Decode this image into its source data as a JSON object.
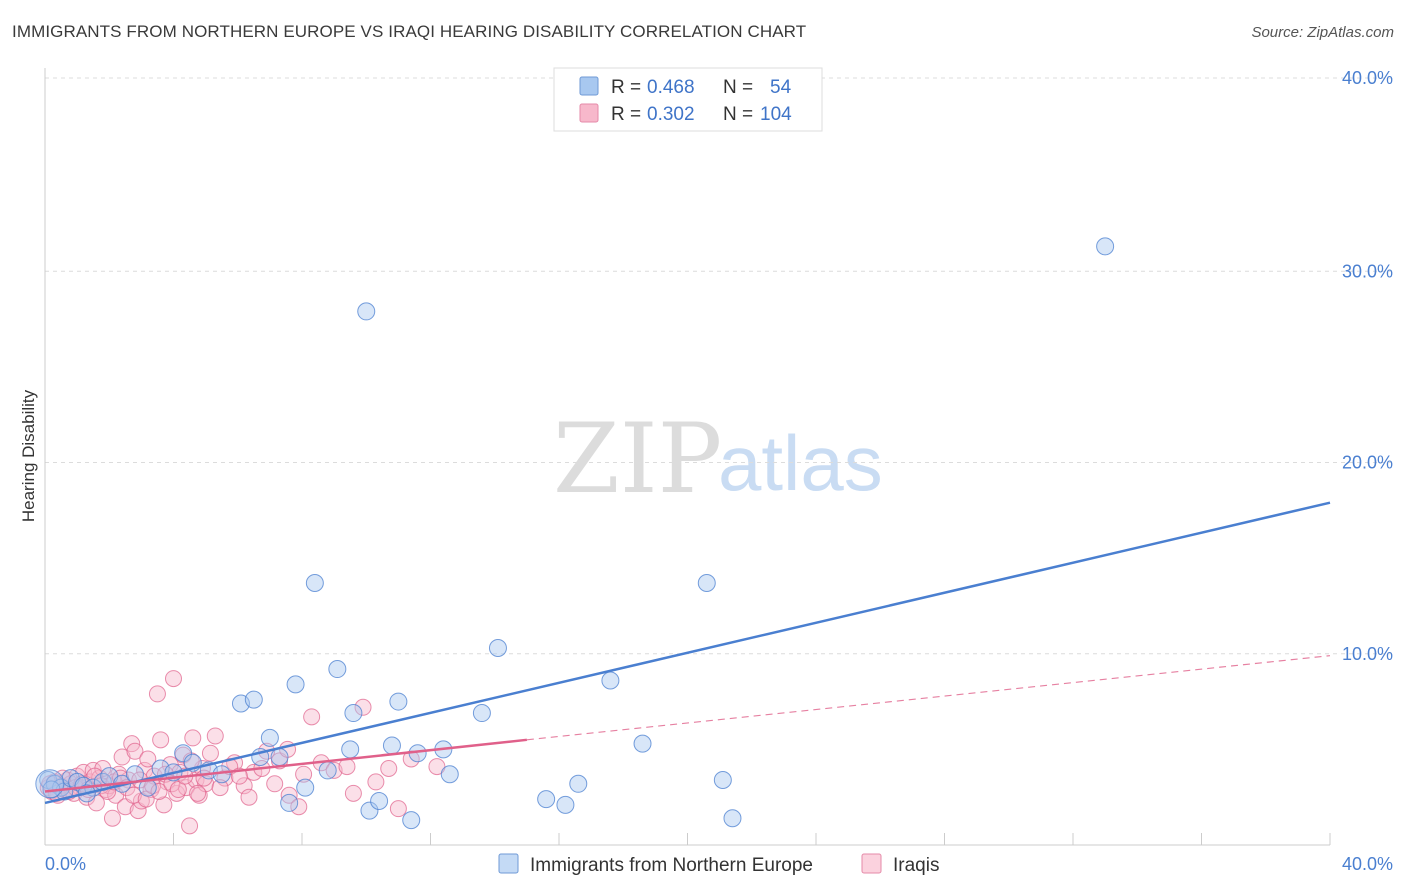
{
  "header": {
    "title": "IMMIGRANTS FROM NORTHERN EUROPE VS IRAQI HEARING DISABILITY CORRELATION CHART",
    "source": "Source: ZipAtlas.com"
  },
  "watermark": {
    "zip": "ZIP",
    "atlas": "atlas"
  },
  "legend": {
    "rows": [
      {
        "r_label": "R =",
        "r_value": "0.468",
        "n_label": "N =",
        "n_value": "54",
        "color": "#a8c8f0"
      },
      {
        "r_label": "R =",
        "r_value": "0.302",
        "n_label": "N =",
        "n_value": "104",
        "color": "#f7b8cb"
      }
    ]
  },
  "chart_data": {
    "type": "scatter",
    "title": "IMMIGRANTS FROM NORTHERN EUROPE VS IRAQI HEARING DISABILITY CORRELATION CHART",
    "xlabel": "",
    "ylabel": "Hearing Disability",
    "xlim": [
      0,
      40
    ],
    "ylim": [
      0,
      40
    ],
    "x_tick_labels": [
      "0.0%",
      "40.0%"
    ],
    "y_ticks": [
      10,
      20,
      30,
      40
    ],
    "y_tick_labels": [
      "10.0%",
      "20.0%",
      "30.0%",
      "40.0%"
    ],
    "grid": true,
    "series": [
      {
        "name": "Immigrants from Northern Europe",
        "color": "#4a7fd0",
        "fill": "#a8c8f0",
        "trend": {
          "x": [
            0,
            40
          ],
          "y": [
            2.2,
            17.9
          ],
          "style": "solid"
        },
        "points": [
          [
            0.1,
            3.4
          ],
          [
            0.3,
            3.2
          ],
          [
            0.5,
            3.0
          ],
          [
            0.6,
            2.8
          ],
          [
            0.8,
            3.5
          ],
          [
            1.0,
            3.3
          ],
          [
            1.2,
            3.1
          ],
          [
            1.5,
            3.0
          ],
          [
            1.8,
            3.3
          ],
          [
            2.0,
            3.6
          ],
          [
            2.4,
            3.2
          ],
          [
            2.8,
            3.7
          ],
          [
            3.2,
            3.0
          ],
          [
            3.6,
            4.0
          ],
          [
            4.0,
            3.8
          ],
          [
            4.3,
            4.8
          ],
          [
            4.6,
            4.3
          ],
          [
            5.1,
            3.9
          ],
          [
            5.5,
            3.7
          ],
          [
            6.1,
            7.4
          ],
          [
            6.5,
            7.6
          ],
          [
            6.7,
            4.6
          ],
          [
            7.0,
            5.6
          ],
          [
            7.3,
            4.6
          ],
          [
            7.6,
            2.2
          ],
          [
            7.8,
            8.4
          ],
          [
            8.1,
            3.0
          ],
          [
            8.4,
            13.7
          ],
          [
            8.8,
            3.9
          ],
          [
            9.1,
            9.2
          ],
          [
            9.5,
            5.0
          ],
          [
            9.6,
            6.9
          ],
          [
            10.0,
            27.9
          ],
          [
            10.1,
            1.8
          ],
          [
            10.4,
            2.3
          ],
          [
            10.8,
            5.2
          ],
          [
            11.0,
            7.5
          ],
          [
            11.4,
            1.3
          ],
          [
            11.6,
            4.8
          ],
          [
            12.4,
            5.0
          ],
          [
            12.6,
            3.7
          ],
          [
            13.6,
            6.9
          ],
          [
            14.1,
            10.3
          ],
          [
            15.6,
            2.4
          ],
          [
            16.2,
            2.1
          ],
          [
            16.6,
            3.2
          ],
          [
            17.6,
            8.6
          ],
          [
            18.6,
            5.3
          ],
          [
            20.6,
            13.7
          ],
          [
            21.1,
            3.4
          ],
          [
            21.4,
            1.4
          ],
          [
            33.0,
            31.3
          ],
          [
            0.2,
            2.9
          ],
          [
            1.3,
            2.7
          ]
        ]
      },
      {
        "name": "Iraqis",
        "color": "#e0608a",
        "fill": "#f7b8cb",
        "trend": {
          "x": [
            0,
            15
          ],
          "y": [
            2.8,
            5.5
          ],
          "style": "solid"
        },
        "trend_extension": {
          "x": [
            15,
            40
          ],
          "y": [
            5.5,
            9.9
          ],
          "style": "dashed"
        },
        "points": [
          [
            0.1,
            3.0
          ],
          [
            0.2,
            2.8
          ],
          [
            0.3,
            3.3
          ],
          [
            0.4,
            2.6
          ],
          [
            0.5,
            3.1
          ],
          [
            0.6,
            2.9
          ],
          [
            0.7,
            3.4
          ],
          [
            0.8,
            3.2
          ],
          [
            0.9,
            2.7
          ],
          [
            1.0,
            3.6
          ],
          [
            1.1,
            3.0
          ],
          [
            1.2,
            3.8
          ],
          [
            1.3,
            2.5
          ],
          [
            1.4,
            3.3
          ],
          [
            1.5,
            3.9
          ],
          [
            1.6,
            2.2
          ],
          [
            1.7,
            3.5
          ],
          [
            1.8,
            4.0
          ],
          [
            1.9,
            2.9
          ],
          [
            2.0,
            3.1
          ],
          [
            2.1,
            1.4
          ],
          [
            2.2,
            2.6
          ],
          [
            2.3,
            3.7
          ],
          [
            2.4,
            4.6
          ],
          [
            2.5,
            2.0
          ],
          [
            2.6,
            3.4
          ],
          [
            2.7,
            5.3
          ],
          [
            2.8,
            4.9
          ],
          [
            2.9,
            1.8
          ],
          [
            3.0,
            2.3
          ],
          [
            3.1,
            3.9
          ],
          [
            3.2,
            4.5
          ],
          [
            3.3,
            2.9
          ],
          [
            3.4,
            3.6
          ],
          [
            3.5,
            7.9
          ],
          [
            3.6,
            5.5
          ],
          [
            3.7,
            2.1
          ],
          [
            3.8,
            3.3
          ],
          [
            3.9,
            4.2
          ],
          [
            4.0,
            8.7
          ],
          [
            4.1,
            2.7
          ],
          [
            4.2,
            3.8
          ],
          [
            4.3,
            4.7
          ],
          [
            4.4,
            3.0
          ],
          [
            4.5,
            1.0
          ],
          [
            4.6,
            5.6
          ],
          [
            4.7,
            3.4
          ],
          [
            4.8,
            2.6
          ],
          [
            4.9,
            4.0
          ],
          [
            5.0,
            3.2
          ],
          [
            5.3,
            5.7
          ],
          [
            5.6,
            3.5
          ],
          [
            5.9,
            4.3
          ],
          [
            6.2,
            3.1
          ],
          [
            6.5,
            3.8
          ],
          [
            6.9,
            4.9
          ],
          [
            7.3,
            4.4
          ],
          [
            7.6,
            2.6
          ],
          [
            7.9,
            2.0
          ],
          [
            8.3,
            6.7
          ],
          [
            8.6,
            4.3
          ],
          [
            9.0,
            3.9
          ],
          [
            9.4,
            4.1
          ],
          [
            9.6,
            2.7
          ],
          [
            9.9,
            7.2
          ],
          [
            10.3,
            3.3
          ],
          [
            10.7,
            4.0
          ],
          [
            11.0,
            1.9
          ],
          [
            11.4,
            4.5
          ],
          [
            12.2,
            4.1
          ],
          [
            0.15,
            3.2
          ],
          [
            0.35,
            2.7
          ],
          [
            0.55,
            3.5
          ],
          [
            0.75,
            2.8
          ],
          [
            0.95,
            3.0
          ],
          [
            1.15,
            3.2
          ],
          [
            1.35,
            2.9
          ],
          [
            1.55,
            3.6
          ],
          [
            1.75,
            3.1
          ],
          [
            1.95,
            2.8
          ],
          [
            2.15,
            3.3
          ],
          [
            2.35,
            3.5
          ],
          [
            2.55,
            3.0
          ],
          [
            2.75,
            2.6
          ],
          [
            2.95,
            3.4
          ],
          [
            3.15,
            2.4
          ],
          [
            3.35,
            3.1
          ],
          [
            3.55,
            2.8
          ],
          [
            3.75,
            3.7
          ],
          [
            3.95,
            3.2
          ],
          [
            4.15,
            2.9
          ],
          [
            4.35,
            3.6
          ],
          [
            4.55,
            4.4
          ],
          [
            4.75,
            2.7
          ],
          [
            4.95,
            3.5
          ],
          [
            5.15,
            4.8
          ],
          [
            5.45,
            3.0
          ],
          [
            5.75,
            4.1
          ],
          [
            6.05,
            3.6
          ],
          [
            6.35,
            2.5
          ],
          [
            6.75,
            4.0
          ],
          [
            7.15,
            3.2
          ],
          [
            7.55,
            5.0
          ],
          [
            8.05,
            3.7
          ]
        ]
      }
    ]
  },
  "bottom_legend": {
    "items": [
      {
        "label": "Immigrants from Northern Europe",
        "color": "#a8c8f0"
      },
      {
        "label": "Iraqis",
        "color": "#f7b8cb"
      }
    ]
  }
}
